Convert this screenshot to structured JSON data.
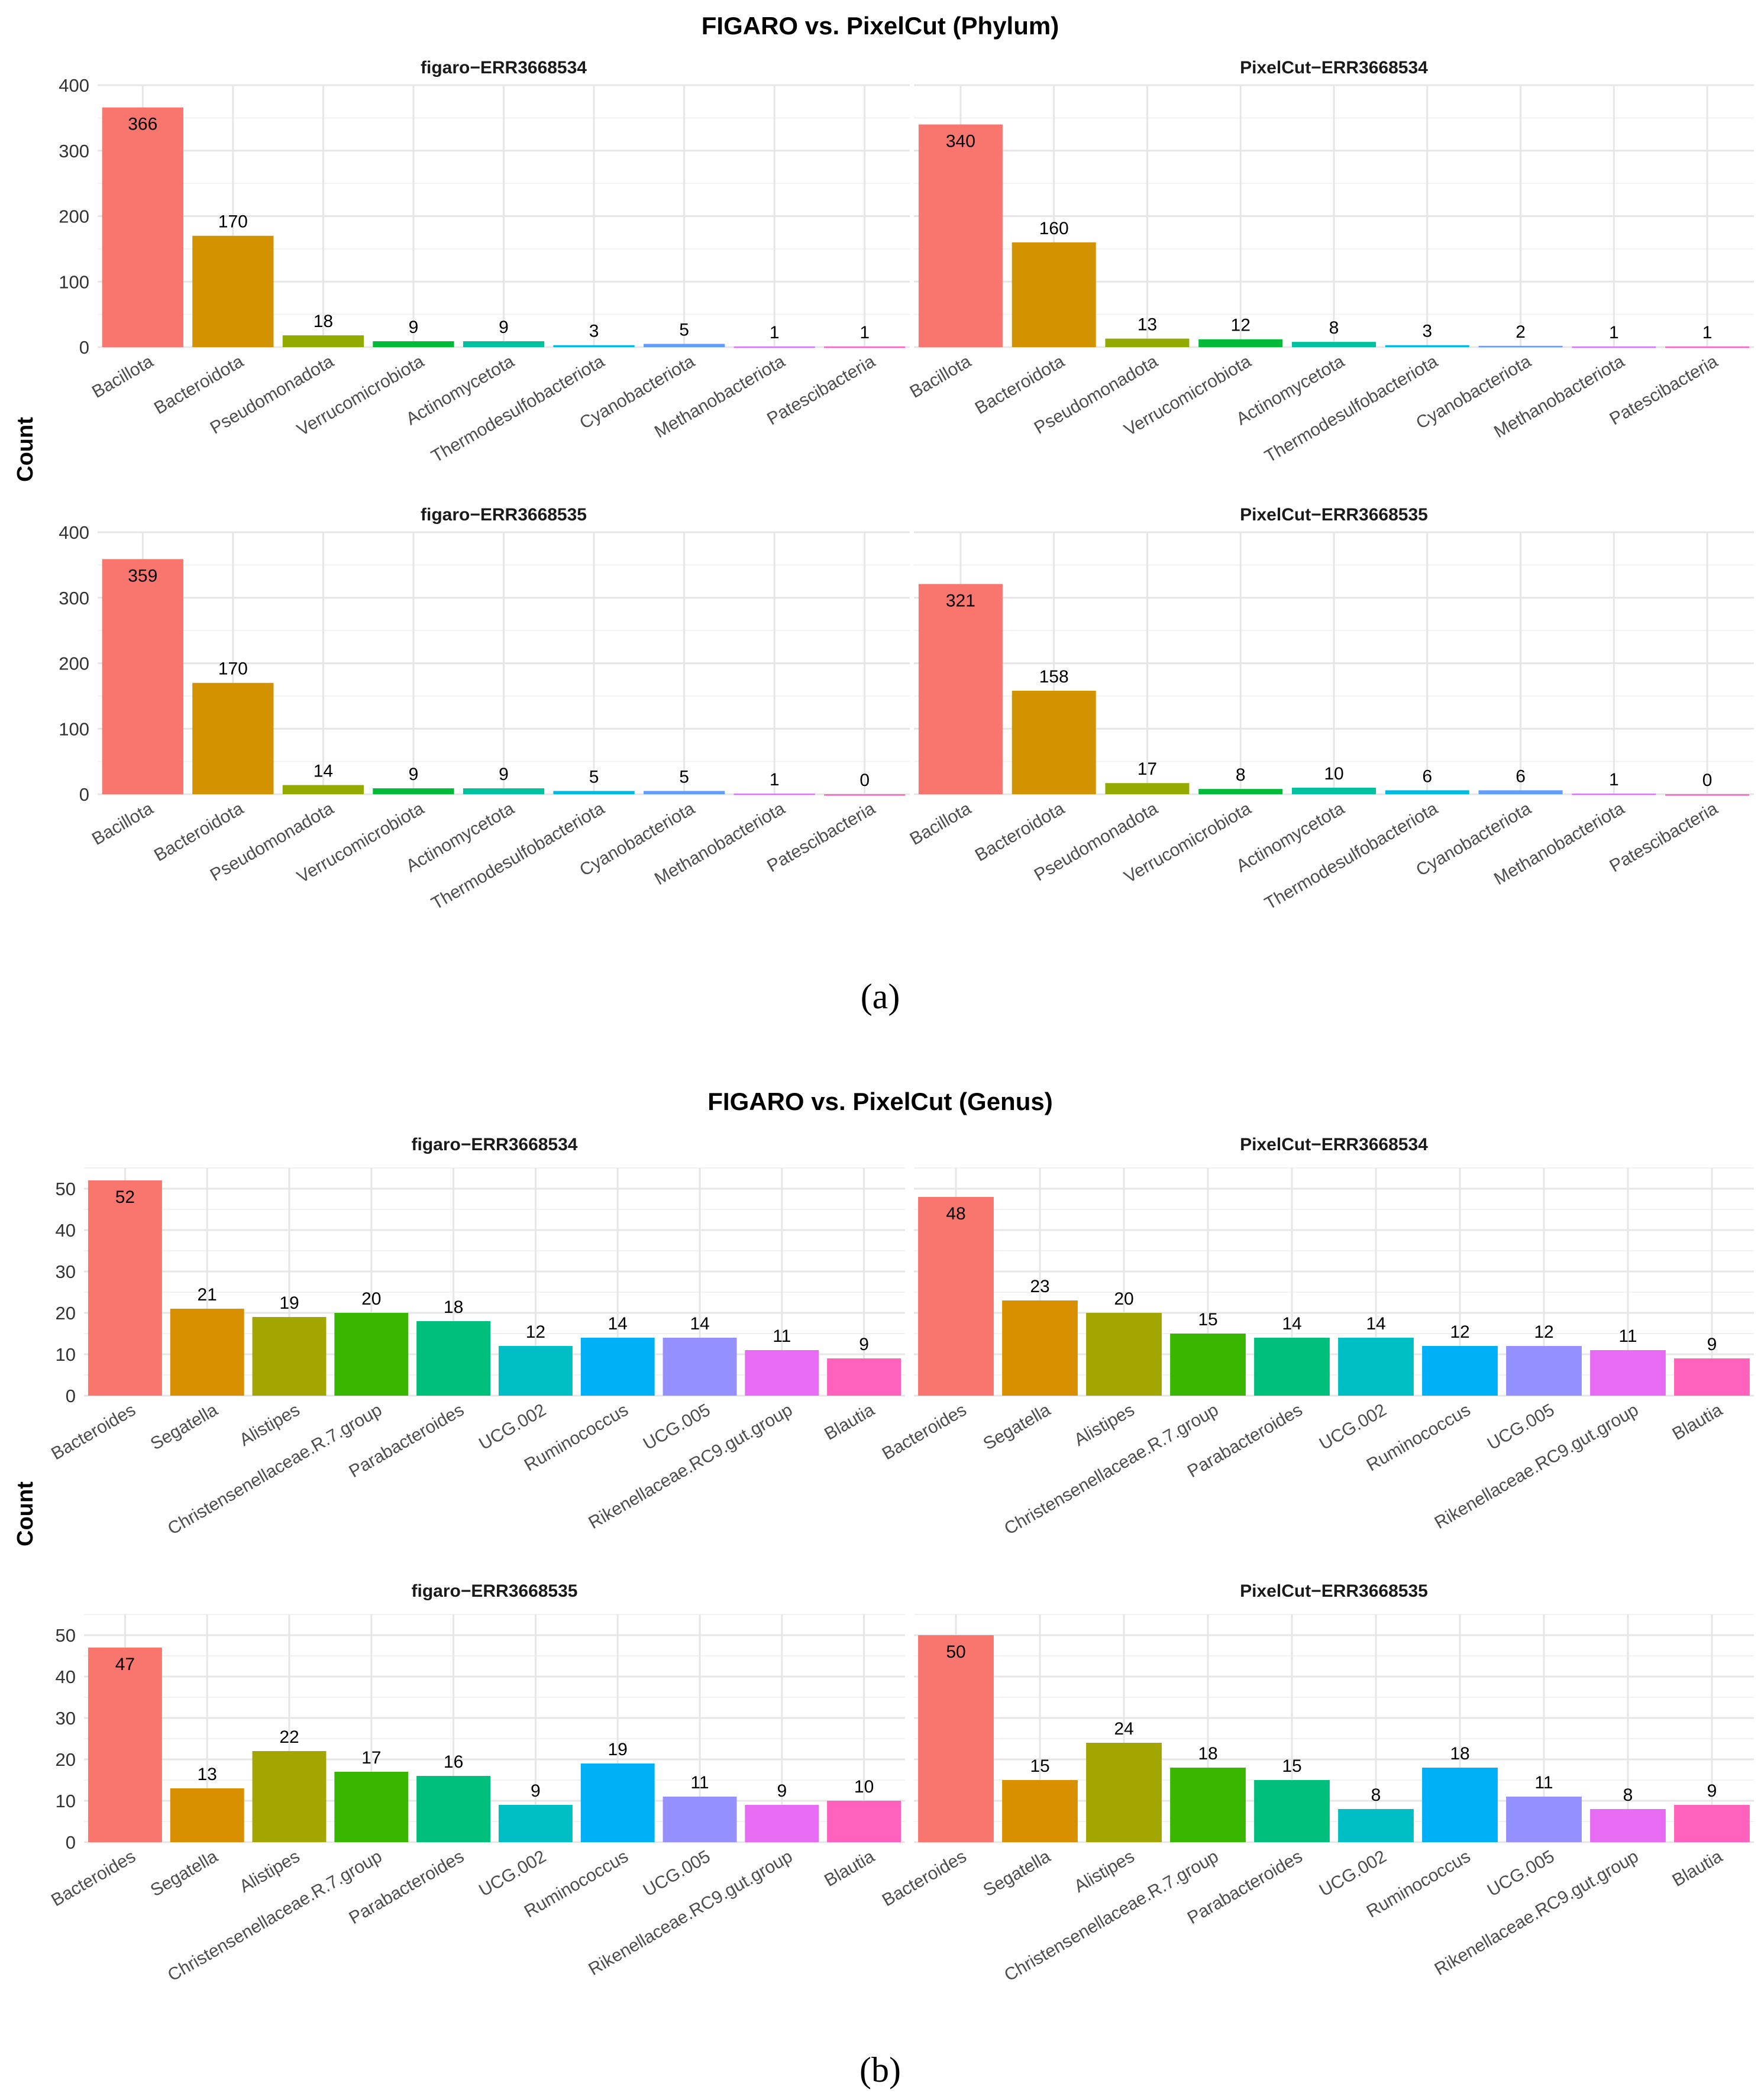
{
  "chart_data": [
    {
      "type": "bar",
      "title": "FIGARO vs. PixelCut (Phylum)",
      "caption": "(a)",
      "ylabel": "Count",
      "ylim": [
        0,
        400
      ],
      "yticks": [
        0,
        100,
        200,
        300,
        400
      ],
      "categories": [
        "Bacillota",
        "Bacteroidota",
        "Pseudomonadota",
        "Verrucomicrobiota",
        "Actinomycetota",
        "Thermodesulfobacteriota",
        "Cyanobacteriota",
        "Methanobacteriota",
        "Patescibacteria"
      ],
      "colors": [
        "#F8766D",
        "#D39200",
        "#93AA00",
        "#00BA38",
        "#00C19F",
        "#00B9E3",
        "#619CFF",
        "#DB72FB",
        "#FF61C3"
      ],
      "panels": [
        {
          "title": "figaro−ERR3668534",
          "values": [
            366,
            170,
            18,
            9,
            9,
            3,
            5,
            1,
            1
          ]
        },
        {
          "title": "PixelCut−ERR3668534",
          "values": [
            340,
            160,
            13,
            12,
            8,
            3,
            2,
            1,
            1
          ]
        },
        {
          "title": "figaro−ERR3668535",
          "values": [
            359,
            170,
            14,
            9,
            9,
            5,
            5,
            1,
            0
          ]
        },
        {
          "title": "PixelCut−ERR3668535",
          "values": [
            321,
            158,
            17,
            8,
            10,
            6,
            6,
            1,
            0
          ]
        }
      ]
    },
    {
      "type": "bar",
      "title": "FIGARO vs. PixelCut (Genus)",
      "caption": "(b)",
      "ylabel": "Count",
      "ylim": [
        0,
        55
      ],
      "yticks": [
        0,
        10,
        20,
        30,
        40,
        50
      ],
      "categories": [
        "Bacteroides",
        "Segatella",
        "Alistipes",
        "Christensenellaceae.R.7.group",
        "Parabacteroides",
        "UCG.002",
        "Ruminococcus",
        "UCG.005",
        "Rikenellaceae.RC9.gut.group",
        "Blautia"
      ],
      "colors": [
        "#F8766D",
        "#D89000",
        "#A3A500",
        "#39B600",
        "#00BF7D",
        "#00BFC4",
        "#00B0F6",
        "#9590FF",
        "#E76BF3",
        "#FF62BC"
      ],
      "panels": [
        {
          "title": "figaro−ERR3668534",
          "values": [
            52,
            21,
            19,
            20,
            18,
            12,
            14,
            14,
            11,
            9
          ]
        },
        {
          "title": "PixelCut−ERR3668534",
          "values": [
            48,
            23,
            20,
            15,
            14,
            14,
            12,
            12,
            11,
            9
          ]
        },
        {
          "title": "figaro−ERR3668535",
          "values": [
            47,
            13,
            22,
            17,
            16,
            9,
            19,
            11,
            9,
            10
          ]
        },
        {
          "title": "PixelCut−ERR3668535",
          "values": [
            50,
            15,
            24,
            18,
            15,
            8,
            18,
            11,
            8,
            9
          ]
        }
      ]
    }
  ]
}
